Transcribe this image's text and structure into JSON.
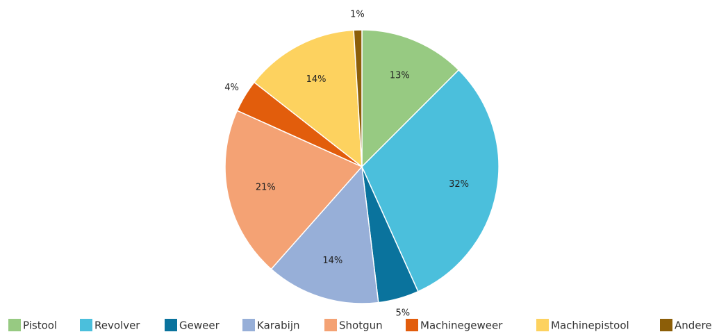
{
  "chart_data": {
    "type": "pie",
    "categories": [
      "Pistool",
      "Revolver",
      "Geweer",
      "Karabijn",
      "Shotgun",
      "Machinegeweer",
      "Machinepistool",
      "Andere"
    ],
    "values": [
      13,
      32,
      5,
      14,
      21,
      4,
      14,
      1
    ],
    "colors": [
      "#97ca82",
      "#4bbfdc",
      "#0a739d",
      "#97afd8",
      "#f4a274",
      "#e25d0c",
      "#fdd25f",
      "#8c5e08"
    ],
    "value_labels": [
      "13%",
      "32%",
      "5%",
      "14%",
      "21%",
      "4%",
      "14%",
      "1%"
    ],
    "legend": "bottom"
  }
}
